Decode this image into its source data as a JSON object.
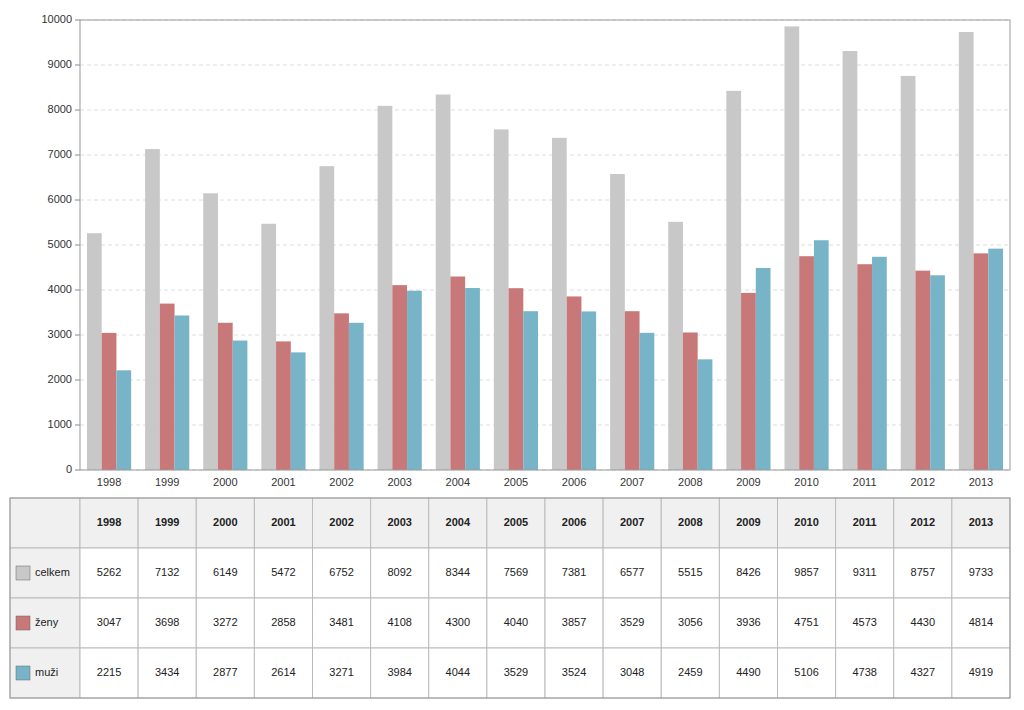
{
  "chart_data": {
    "type": "bar",
    "categories": [
      "1998",
      "1999",
      "2000",
      "2001",
      "2002",
      "2003",
      "2004",
      "2005",
      "2006",
      "2007",
      "2008",
      "2009",
      "2010",
      "2011",
      "2012",
      "2013"
    ],
    "series": [
      {
        "name": "celkem",
        "color": "#c8c8c8",
        "values": [
          5262,
          7132,
          6149,
          5472,
          6752,
          8092,
          8344,
          7569,
          7381,
          6577,
          5515,
          8426,
          9857,
          9311,
          8757,
          9733
        ]
      },
      {
        "name": "ženy",
        "color": "#c87878",
        "values": [
          3047,
          3698,
          3272,
          2858,
          3481,
          4108,
          4300,
          4040,
          3857,
          3529,
          3056,
          3936,
          4751,
          4573,
          4430,
          4814
        ]
      },
      {
        "name": "muži",
        "color": "#78b4c8",
        "values": [
          2215,
          3434,
          2877,
          2614,
          3271,
          3984,
          4044,
          3529,
          3524,
          3048,
          2459,
          4490,
          5106,
          4738,
          4327,
          4919
        ]
      }
    ],
    "ylim": [
      0,
      10000
    ],
    "yticks": [
      0,
      1000,
      2000,
      3000,
      4000,
      5000,
      6000,
      7000,
      8000,
      9000,
      10000
    ],
    "grid": true
  }
}
